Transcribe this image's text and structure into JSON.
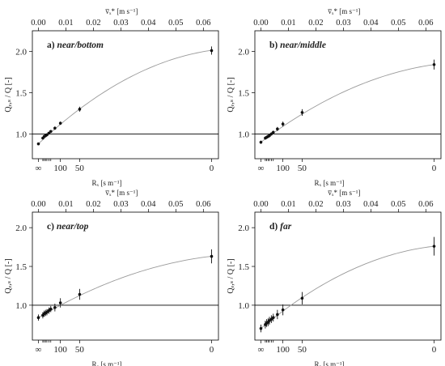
{
  "figure": {
    "top_axis_label": "v̅ₓ* [m s⁻¹]",
    "bottom_axis_label": "Rₓ [s m⁻¹]",
    "y_axis_label": "Qₑ,ₛ / Q [-]"
  },
  "chart_data": [
    {
      "type": "scatter",
      "panel_label": "a)",
      "title": "near/bottom",
      "x_top_ticks": [
        "0.00",
        "0.01",
        "0.02",
        "0.03",
        "0.04",
        "0.05",
        "0.06"
      ],
      "x_bottom_ticks": [
        "∞",
        "100",
        "50",
        "0"
      ],
      "y_ticks": [
        "1.0",
        "1.5",
        "2.0"
      ],
      "xlim": [
        -0.0022,
        0.0655
      ],
      "ylim": [
        0.7,
        2.25
      ],
      "reference_y": 1.0,
      "series": [
        {
          "x": [
            0.0,
            0.0016,
            0.0021,
            0.0026,
            0.0031,
            0.0038,
            0.0045,
            0.006,
            0.008,
            0.015,
            0.063
          ],
          "y": [
            0.88,
            0.95,
            0.97,
            0.98,
            0.99,
            1.01,
            1.03,
            1.07,
            1.13,
            1.3,
            2.01
          ],
          "err": [
            0.015,
            0.015,
            0.015,
            0.015,
            0.015,
            0.015,
            0.015,
            0.02,
            0.02,
            0.03,
            0.05
          ]
        }
      ],
      "fit_curve": {
        "a": 0.88,
        "b": 31.28,
        "c": -211.0
      }
    },
    {
      "type": "scatter",
      "panel_label": "b)",
      "title": "near/middle",
      "x_top_ticks": [
        "0.00",
        "0.01",
        "0.02",
        "0.03",
        "0.04",
        "0.05",
        "0.06"
      ],
      "x_bottom_ticks": [
        "∞",
        "100",
        "50",
        "0"
      ],
      "y_ticks": [
        "1.0",
        "1.5",
        "2.0"
      ],
      "xlim": [
        -0.0022,
        0.0655
      ],
      "ylim": [
        0.7,
        2.25
      ],
      "reference_y": 1.0,
      "series": [
        {
          "x": [
            0.0,
            0.0016,
            0.0021,
            0.0026,
            0.0031,
            0.0038,
            0.0045,
            0.006,
            0.008,
            0.015,
            0.063
          ],
          "y": [
            0.9,
            0.95,
            0.96,
            0.97,
            0.98,
            1.0,
            1.02,
            1.06,
            1.12,
            1.26,
            1.84
          ],
          "err": [
            0.02,
            0.02,
            0.02,
            0.02,
            0.02,
            0.02,
            0.02,
            0.025,
            0.03,
            0.04,
            0.06
          ]
        }
      ],
      "fit_curve": {
        "a": 0.9,
        "b": 25.13,
        "c": -162.0
      }
    },
    {
      "type": "scatter",
      "panel_label": "c)",
      "title": "near/top",
      "x_top_ticks": [
        "0.00",
        "0.01",
        "0.02",
        "0.03",
        "0.04",
        "0.05",
        "0.06"
      ],
      "x_bottom_ticks": [
        "∞",
        "100",
        "50",
        "0"
      ],
      "y_ticks": [
        "1.0",
        "1.5",
        "2.0"
      ],
      "xlim": [
        -0.0022,
        0.0655
      ],
      "ylim": [
        0.55,
        2.2
      ],
      "reference_y": 1.0,
      "series": [
        {
          "x": [
            0.0,
            0.0016,
            0.0021,
            0.0026,
            0.0031,
            0.0038,
            0.0045,
            0.006,
            0.008,
            0.015,
            0.063
          ],
          "y": [
            0.84,
            0.87,
            0.89,
            0.9,
            0.91,
            0.93,
            0.95,
            0.97,
            1.03,
            1.14,
            1.63
          ],
          "err": [
            0.04,
            0.04,
            0.04,
            0.04,
            0.04,
            0.04,
            0.04,
            0.05,
            0.06,
            0.07,
            0.09
          ]
        }
      ],
      "fit_curve": {
        "a": 0.84,
        "b": 20.94,
        "c": -133.0
      }
    },
    {
      "type": "scatter",
      "panel_label": "d)",
      "title": "far",
      "x_top_ticks": [
        "0.00",
        "0.01",
        "0.02",
        "0.03",
        "0.04",
        "0.05",
        "0.06"
      ],
      "x_bottom_ticks": [
        "∞",
        "100",
        "50",
        "0"
      ],
      "y_ticks": [
        "1.0",
        "1.5",
        "2.0"
      ],
      "xlim": [
        -0.0022,
        0.0655
      ],
      "ylim": [
        0.55,
        2.2
      ],
      "reference_y": 1.0,
      "series": [
        {
          "x": [
            0.0,
            0.0016,
            0.0021,
            0.0026,
            0.0031,
            0.0038,
            0.0045,
            0.006,
            0.008,
            0.015,
            0.063
          ],
          "y": [
            0.7,
            0.75,
            0.77,
            0.78,
            0.8,
            0.82,
            0.84,
            0.88,
            0.94,
            1.09,
            1.76
          ],
          "err": [
            0.05,
            0.05,
            0.05,
            0.05,
            0.05,
            0.05,
            0.05,
            0.06,
            0.07,
            0.08,
            0.12
          ]
        }
      ],
      "fit_curve": {
        "a": 0.7,
        "b": 29.62,
        "c": -203.0
      }
    }
  ]
}
